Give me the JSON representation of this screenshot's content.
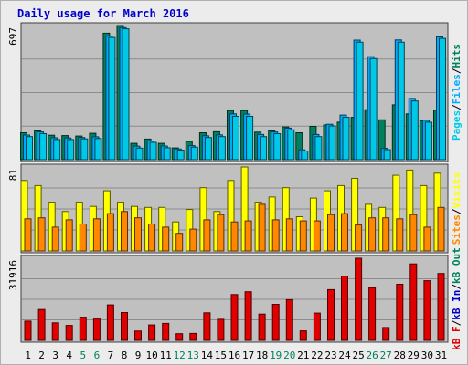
{
  "chart_data": {
    "type": "bar",
    "title": "Daily usage for March 2016",
    "days": [
      "1",
      "2",
      "3",
      "4",
      "5",
      "6",
      "7",
      "8",
      "9",
      "10",
      "11",
      "12",
      "13",
      "14",
      "15",
      "16",
      "17",
      "18",
      "19",
      "20",
      "21",
      "22",
      "23",
      "24",
      "25",
      "26",
      "27",
      "28",
      "29",
      "30",
      "31"
    ],
    "weekend_days": [
      "5",
      "6",
      "12",
      "13",
      "19",
      "20",
      "26",
      "27"
    ],
    "panels": [
      {
        "id": "top",
        "ymax": 697,
        "ymax_label": "697",
        "series": [
          {
            "name": "Hits",
            "color": "#00805c",
            "values": [
              140,
              150,
              127,
              125,
              123,
              137,
              657,
              697,
              85,
              107,
              85,
              61,
              95,
              140,
              145,
              255,
              255,
              143,
              150,
              170,
              140,
              173,
              180,
              195,
              220,
              260,
              207,
              285,
              238,
              203,
              257
            ]
          },
          {
            "name": "Files",
            "color": "#00a8ff",
            "values": [
              128,
              144,
              114,
              113,
              115,
              119,
              642,
              686,
              70,
              97,
              71,
              56,
              73,
              124,
              129,
              238,
              237,
              131,
              144,
              164,
              51,
              131,
              184,
              232,
              621,
              535,
              59,
              622,
              318,
              205,
              638
            ]
          },
          {
            "name": "Pages",
            "color": "#00c8e8",
            "values": [
              120,
              135,
              105,
              105,
              108,
              110,
              635,
              680,
              60,
              90,
              62,
              50,
              65,
              115,
              120,
              225,
              225,
              120,
              135,
              155,
              45,
              120,
              175,
              220,
              610,
              525,
              52,
              610,
              305,
              195,
              630
            ]
          }
        ]
      },
      {
        "id": "mid",
        "ymax": 81,
        "ymax_label": "81",
        "series": [
          {
            "name": "Visits",
            "color": "#ffff00",
            "values": [
              68,
              63,
              47,
              38,
              47,
              43,
              58,
              47,
              43,
              42,
              42,
              28,
              40,
              61,
              38,
              68,
              81,
              47,
              52,
              61,
              33,
              51,
              58,
              63,
              70,
              45,
              42,
              73,
              78,
              63,
              75
            ]
          },
          {
            "name": "Sites",
            "color": "#ff8800",
            "values": [
              31,
              32,
              23,
              30,
              26,
              31,
              36,
              38,
              32,
              26,
              23,
              17,
              21,
              30,
              35,
              28,
              29,
              45,
              30,
              31,
              29,
              29,
              35,
              36,
              25,
              32,
              32,
              31,
              35,
              23,
              42
            ]
          }
        ]
      },
      {
        "id": "bot",
        "ymax": 31916,
        "ymax_label": "31916",
        "series": [
          {
            "name": "kB F",
            "color": "#e00000",
            "values": [
              7500,
              12000,
              6800,
              5800,
              9000,
              8300,
              13800,
              10800,
              3600,
              6000,
              6600,
              2600,
              2700,
              10700,
              8200,
              17800,
              18900,
              10200,
              14000,
              15800,
              3700,
              10600,
              19700,
              25000,
              31916,
              20500,
              5000,
              21800,
              29700,
              23200,
              26000
            ]
          }
        ]
      }
    ],
    "legend_labels": [
      [
        {
          "text": "Pages",
          "color": "#00c8e8"
        },
        {
          "text": "Files",
          "color": "#00a8ff"
        },
        {
          "text": "Hits",
          "color": "#00805c"
        }
      ],
      [
        {
          "text": "Sites",
          "color": "#ff8800"
        },
        {
          "text": "Visits",
          "color": "#ffff00"
        }
      ],
      [
        {
          "text": "kB F",
          "color": "#e00000"
        },
        {
          "text": "kB In",
          "color": "#0000c8"
        },
        {
          "text": "kB Out",
          "color": "#00805c"
        }
      ]
    ],
    "legend_separator": "/",
    "grid": true
  }
}
